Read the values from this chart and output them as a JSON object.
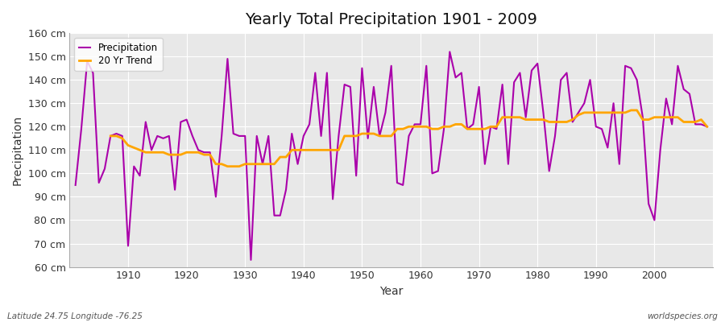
{
  "title": "Yearly Total Precipitation 1901 - 2009",
  "xlabel": "Year",
  "ylabel": "Precipitation",
  "latitude_label": "Latitude 24.75 Longitude -76.25",
  "watermark": "worldspecies.org",
  "ylim": [
    60,
    160
  ],
  "yticks": [
    60,
    70,
    80,
    90,
    100,
    110,
    120,
    130,
    140,
    150,
    160
  ],
  "ytick_labels": [
    "60 cm",
    "70 cm",
    "80 cm",
    "90 cm",
    "100 cm",
    "110 cm",
    "120 cm",
    "130 cm",
    "140 cm",
    "150 cm",
    "160 cm"
  ],
  "years": [
    1901,
    1902,
    1903,
    1904,
    1905,
    1906,
    1907,
    1908,
    1909,
    1910,
    1911,
    1912,
    1913,
    1914,
    1915,
    1916,
    1917,
    1918,
    1919,
    1920,
    1921,
    1922,
    1923,
    1924,
    1925,
    1926,
    1927,
    1928,
    1929,
    1930,
    1931,
    1932,
    1933,
    1934,
    1935,
    1936,
    1937,
    1938,
    1939,
    1940,
    1941,
    1942,
    1943,
    1944,
    1945,
    1946,
    1947,
    1948,
    1949,
    1950,
    1951,
    1952,
    1953,
    1954,
    1955,
    1956,
    1957,
    1958,
    1959,
    1960,
    1961,
    1962,
    1963,
    1964,
    1965,
    1966,
    1967,
    1968,
    1969,
    1970,
    1971,
    1972,
    1973,
    1974,
    1975,
    1976,
    1977,
    1978,
    1979,
    1980,
    1981,
    1982,
    1983,
    1984,
    1985,
    1986,
    1987,
    1988,
    1989,
    1990,
    1991,
    1992,
    1993,
    1994,
    1995,
    1996,
    1997,
    1998,
    1999,
    2000,
    2001,
    2002,
    2003,
    2004,
    2005,
    2006,
    2007,
    2008,
    2009
  ],
  "precipitation": [
    95,
    119,
    148,
    143,
    96,
    102,
    116,
    117,
    116,
    69,
    103,
    99,
    122,
    110,
    116,
    115,
    116,
    93,
    122,
    123,
    116,
    110,
    109,
    109,
    90,
    116,
    149,
    117,
    116,
    116,
    63,
    116,
    104,
    116,
    82,
    82,
    93,
    117,
    104,
    116,
    121,
    143,
    116,
    143,
    89,
    116,
    138,
    137,
    99,
    145,
    115,
    137,
    116,
    126,
    146,
    96,
    95,
    116,
    121,
    121,
    146,
    100,
    101,
    119,
    152,
    141,
    143,
    119,
    121,
    137,
    104,
    120,
    119,
    138,
    104,
    139,
    143,
    124,
    144,
    147,
    126,
    101,
    116,
    140,
    143,
    122,
    126,
    130,
    140,
    120,
    119,
    111,
    130,
    104,
    146,
    145,
    140,
    124,
    87,
    80,
    110,
    132,
    121,
    146,
    136,
    134,
    121,
    121,
    120
  ],
  "trend_years": [
    1907,
    1908,
    1909,
    1910,
    1911,
    1912,
    1913,
    1914,
    1915,
    1916,
    1917,
    1918,
    1919,
    1920,
    1921,
    1922,
    1923,
    1924,
    1925,
    1926,
    1927,
    1928,
    1929,
    1930,
    1931,
    1932,
    1933,
    1934,
    1935,
    1936,
    1937,
    1938,
    1939,
    1940,
    1941,
    1942,
    1943,
    1944,
    1945,
    1946,
    1947,
    1948,
    1949,
    1950,
    1951,
    1952,
    1953,
    1954,
    1955,
    1956,
    1957,
    1958,
    1959,
    1960,
    1961,
    1962,
    1963,
    1964,
    1965,
    1966,
    1967,
    1968,
    1969,
    1970,
    1971,
    1972,
    1973,
    1974,
    1975,
    1976,
    1977,
    1978,
    1979,
    1980,
    1981,
    1982,
    1983,
    1984,
    1985,
    1986,
    1987,
    1988,
    1989,
    1990,
    1991,
    1992,
    1993,
    1994,
    1995,
    1996,
    1997,
    1998,
    1999,
    2000,
    2001,
    2002,
    2003,
    2004,
    2005,
    2006,
    2007,
    2008,
    2009
  ],
  "trend": [
    116,
    116,
    115,
    112,
    111,
    110,
    109,
    109,
    109,
    109,
    108,
    108,
    108,
    109,
    109,
    109,
    108,
    108,
    104,
    104,
    103,
    103,
    103,
    104,
    104,
    104,
    104,
    104,
    104,
    107,
    107,
    110,
    110,
    110,
    110,
    110,
    110,
    110,
    110,
    110,
    116,
    116,
    116,
    117,
    117,
    117,
    116,
    116,
    116,
    119,
    119,
    120,
    120,
    120,
    120,
    119,
    119,
    120,
    120,
    121,
    121,
    119,
    119,
    119,
    119,
    120,
    120,
    124,
    124,
    124,
    124,
    123,
    123,
    123,
    123,
    122,
    122,
    122,
    122,
    123,
    125,
    126,
    126,
    126,
    126,
    126,
    126,
    126,
    126,
    127,
    127,
    123,
    123,
    124,
    124,
    124,
    124,
    124,
    122,
    122,
    122,
    123,
    120
  ],
  "precip_color": "#AA00AA",
  "trend_color": "#FFA500",
  "bg_color": "#FFFFFF",
  "plot_bg_color": "#E8E8E8",
  "grid_color": "#FFFFFF",
  "legend_label_precip": "Precipitation",
  "legend_label_trend": "20 Yr Trend"
}
